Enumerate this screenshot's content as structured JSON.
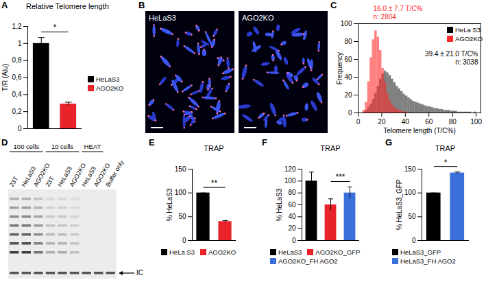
{
  "chart_data": [
    {
      "panel": "A",
      "type": "bar",
      "title": "Relative Telomere length",
      "y_label": "T/R (Alu)",
      "categories": [
        "HeLaS3",
        "AGO2KO"
      ],
      "values": [
        1.0,
        0.29
      ],
      "errors": [
        0.07,
        0.02
      ],
      "colors": [
        "#000000",
        "#e8242a"
      ],
      "ylim": [
        0,
        1.2
      ],
      "yticks": [
        0,
        {
          "value": 0.2,
          "label": "0,2"
        },
        {
          "value": 0.4,
          "label": "0,4"
        },
        {
          "value": 0.6,
          "label": "0,6"
        },
        {
          "value": 0.8,
          "label": "0,8"
        },
        1,
        {
          "value": 1.2,
          "label": "1,2"
        }
      ],
      "significance": {
        "label": "*",
        "between": [
          "HeLaS3",
          "AGO2KO"
        ]
      },
      "tick_labels": "y",
      "legend": "right"
    },
    {
      "panel": "B",
      "type": "image",
      "images": [
        {
          "label": "HeLaS3"
        },
        {
          "label": "AGO2KO"
        }
      ]
    },
    {
      "panel": "C",
      "type": "histogram",
      "x_label": "Telomere length (T/C%)",
      "y_label": "Frequency",
      "bins": [
        0,
        2,
        4,
        6,
        8,
        10,
        12,
        14,
        16,
        18,
        20,
        22,
        24,
        26,
        28,
        30,
        32,
        34,
        36,
        38,
        40,
        42,
        44,
        46,
        48,
        50,
        52,
        54,
        56,
        58,
        60,
        62,
        64,
        66,
        68,
        70,
        72,
        74,
        76,
        78,
        80,
        82,
        84,
        86,
        88,
        90,
        92,
        94,
        96,
        98,
        100,
        102,
        104
      ],
      "series": [
        {
          "name": "HeLa S3",
          "color": "#000000",
          "values": [
            0,
            0,
            1,
            3,
            6,
            10,
            15,
            22,
            30,
            38,
            44,
            47,
            45,
            42,
            38,
            34,
            30,
            27,
            24,
            21,
            19,
            17,
            15,
            13,
            12,
            11,
            10,
            9,
            8,
            7,
            7,
            6,
            5,
            5,
            4,
            4,
            3,
            3,
            3,
            2,
            2,
            2,
            1,
            1,
            1,
            1,
            1,
            1,
            0,
            1,
            0,
            0
          ],
          "annotation": [
            "39.4 ± 21.0 T/C%",
            "n: 3038"
          ]
        },
        {
          "name": "AGO2KO",
          "color": "#ff2a2a",
          "values": [
            0,
            0,
            3,
            12,
            35,
            62,
            82,
            92,
            85,
            70,
            50,
            35,
            22,
            14,
            9,
            6,
            4,
            3,
            2,
            1,
            1,
            0,
            0,
            0,
            0,
            0,
            0,
            0,
            0,
            0,
            0,
            0,
            0,
            0,
            0,
            0,
            0,
            0,
            0,
            0,
            0,
            0,
            0,
            0,
            0,
            0,
            0,
            0,
            0,
            0,
            0,
            0
          ],
          "annotation": [
            "16.0 ± 7.7 T/C%",
            "n: 2804"
          ]
        }
      ],
      "xlim": [
        0,
        104
      ],
      "xticks": [
        0,
        20,
        40,
        60,
        80,
        100
      ],
      "ylim": [
        0,
        100
      ],
      "yticks": [
        0,
        20,
        40,
        60,
        80,
        100
      ],
      "legend": "top-right"
    },
    {
      "panel": "D",
      "type": "gel",
      "groups": [
        {
          "label": "100 cells",
          "lanes": [
            "23T",
            "HeLaS3",
            "AGO2KO"
          ]
        },
        {
          "label": "10 cells",
          "lanes": [
            "23T",
            "HeLaS3",
            "AGO2KO"
          ]
        },
        {
          "label": "HEAT",
          "lanes": [
            "HeLaS3",
            "AGO2KO"
          ]
        }
      ],
      "extra_lanes": [
        "Buffer only"
      ],
      "marker_label": "IC"
    },
    {
      "panel": "E",
      "type": "bar",
      "title": "TRAP",
      "y_label": "% HeLaS3",
      "categories": [
        "HeLa S3",
        "AGO2KO"
      ],
      "values": [
        100,
        40
      ],
      "errors": [
        0,
        2
      ],
      "colors": [
        "#000000",
        "#e8242a"
      ],
      "ylim": [
        0,
        150
      ],
      "yticks": [
        0,
        50,
        100,
        150
      ],
      "significance": {
        "label": "**",
        "between": [
          "HeLa S3",
          "AGO2KO"
        ]
      },
      "tick_labels": "y",
      "legend": "bottom"
    },
    {
      "panel": "F",
      "type": "bar",
      "title": "TRAP",
      "y_label": "% HeLaS3",
      "categories": [
        "HeLaS3",
        "AGO2KO_GFP",
        "AGO2KO_FH AGO2"
      ],
      "values": [
        100,
        60,
        80
      ],
      "errors": [
        15,
        10,
        10
      ],
      "colors": [
        "#000000",
        "#e8242a",
        "#3b6fd9"
      ],
      "ylim": [
        0,
        120
      ],
      "yticks": [
        0,
        20,
        40,
        60,
        80,
        100,
        120
      ],
      "significance": {
        "label": "***",
        "between": [
          "AGO2KO_GFP",
          "AGO2KO_FH AGO2"
        ]
      },
      "tick_labels": "y",
      "legend": "bottom"
    },
    {
      "panel": "G",
      "type": "bar",
      "title": "TRAP",
      "y_label": "% HeLaS3_GFP",
      "categories": [
        "HeLaS3_GFP",
        "HeLaS3_FH AGO2"
      ],
      "values": [
        100,
        142
      ],
      "errors": [
        0,
        2
      ],
      "colors": [
        "#000000",
        "#3b6fd9"
      ],
      "ylim": [
        0,
        150
      ],
      "yticks": [
        0,
        50,
        100,
        150
      ],
      "significance": {
        "label": "*",
        "between": [
          "HeLaS3_GFP",
          "HeLaS3_FH AGO2"
        ]
      },
      "tick_labels": "y",
      "legend": "bottom"
    }
  ]
}
